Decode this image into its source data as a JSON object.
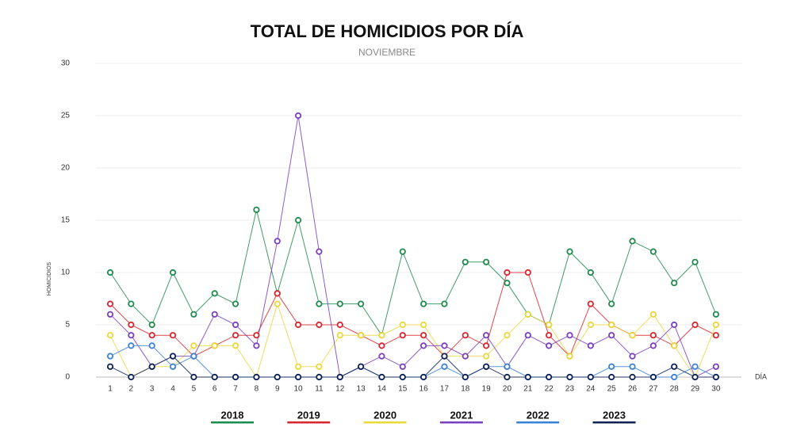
{
  "chart_data": {
    "type": "line",
    "title": "TOTAL DE HOMICIDIOS POR DÍA",
    "subtitle": "NOVIEMBRE",
    "y_label": "HOMICIDIOS",
    "x_label": "DÍA",
    "categories": [
      "1",
      "2",
      "3",
      "4",
      "5",
      "6",
      "7",
      "8",
      "9",
      "10",
      "11",
      "12",
      "13",
      "14",
      "15",
      "16",
      "17",
      "18",
      "19",
      "20",
      "21",
      "22",
      "23",
      "24",
      "25",
      "26",
      "27",
      "28",
      "29",
      "30"
    ],
    "series": [
      {
        "name": "2018",
        "color": "#1e8a4c",
        "values": [
          10,
          7,
          5,
          10,
          6,
          8,
          7,
          16,
          8,
          15,
          7,
          7,
          7,
          4,
          12,
          7,
          7,
          11,
          11,
          9,
          6,
          5,
          12,
          10,
          7,
          13,
          12,
          9,
          11,
          6
        ]
      },
      {
        "name": "2019",
        "color": "#d9262e",
        "values": [
          7,
          5,
          4,
          4,
          2,
          3,
          4,
          4,
          8,
          5,
          5,
          5,
          4,
          3,
          4,
          4,
          2,
          4,
          3,
          10,
          10,
          4,
          2,
          7,
          5,
          4,
          4,
          3,
          5,
          4
        ]
      },
      {
        "name": "2020",
        "color": "#ecd83a",
        "values": [
          4,
          0,
          1,
          1,
          3,
          3,
          3,
          0,
          7,
          1,
          1,
          4,
          4,
          4,
          5,
          5,
          2,
          2,
          2,
          4,
          6,
          5,
          2,
          5,
          5,
          4,
          6,
          3,
          0,
          5
        ]
      },
      {
        "name": "2021",
        "color": "#7a3fbf",
        "values": [
          6,
          4,
          1,
          2,
          2,
          6,
          5,
          3,
          13,
          25,
          12,
          0,
          1,
          2,
          1,
          3,
          3,
          2,
          4,
          1,
          4,
          3,
          4,
          3,
          4,
          2,
          3,
          5,
          0,
          1
        ]
      },
      {
        "name": "2022",
        "color": "#3b82d6",
        "values": [
          2,
          3,
          3,
          1,
          2,
          0,
          0,
          0,
          0,
          0,
          0,
          0,
          1,
          0,
          0,
          0,
          1,
          0,
          1,
          1,
          0,
          0,
          0,
          0,
          1,
          1,
          0,
          0,
          1,
          0
        ]
      },
      {
        "name": "2023",
        "color": "#0d2355",
        "values": [
          1,
          0,
          1,
          2,
          0,
          0,
          0,
          0,
          0,
          0,
          0,
          0,
          1,
          0,
          0,
          0,
          2,
          0,
          1,
          0,
          0,
          0,
          0,
          0,
          0,
          0,
          0,
          1,
          0,
          0
        ]
      }
    ],
    "ylim": [
      0,
      30
    ],
    "yticks": [
      0,
      5,
      10,
      15,
      20,
      25,
      30
    ],
    "grid": true
  }
}
